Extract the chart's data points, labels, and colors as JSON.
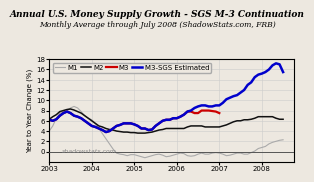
{
  "title": "Annual U.S. Money Supply Growth - SGS M-3 Continuation",
  "subtitle": "Monthly Average through July 2008 (ShadowStats.com, FRB)",
  "ylabel": "Year to Year Change (%)",
  "watermark": "shadowstats.com",
  "ylim": [
    -2,
    18
  ],
  "yticks": [
    0,
    2,
    4,
    6,
    8,
    10,
    12,
    14,
    16,
    18
  ],
  "xlim": [
    2003.0,
    2008.75
  ],
  "xticks": [
    2003,
    2004,
    2005,
    2006,
    2007,
    2008
  ],
  "background_color": "#ede8e0",
  "plot_bg": "#ede8e0",
  "title_fontsize": 6.5,
  "subtitle_fontsize": 5.5,
  "axis_fontsize": 5.0,
  "tick_fontsize": 5.0,
  "legend_fontsize": 5.0,
  "colors": {
    "M1": "#aaaaaa",
    "M2": "#111111",
    "M3": "#cc0000",
    "M3_SGS": "#0000cc"
  },
  "linewidths": {
    "M1": 0.8,
    "M2": 1.1,
    "M3": 1.6,
    "M3_SGS": 1.8
  },
  "x_M1": [
    2003.0,
    2003.083,
    2003.167,
    2003.25,
    2003.333,
    2003.417,
    2003.5,
    2003.583,
    2003.667,
    2003.75,
    2003.833,
    2003.917,
    2004.0,
    2004.083,
    2004.167,
    2004.25,
    2004.333,
    2004.417,
    2004.5,
    2004.583,
    2004.667,
    2004.75,
    2004.833,
    2004.917,
    2005.0,
    2005.083,
    2005.167,
    2005.25,
    2005.333,
    2005.417,
    2005.5,
    2005.583,
    2005.667,
    2005.75,
    2005.833,
    2005.917,
    2006.0,
    2006.083,
    2006.167,
    2006.25,
    2006.333,
    2006.417,
    2006.5,
    2006.583,
    2006.667,
    2006.75,
    2006.833,
    2006.917,
    2007.0,
    2007.083,
    2007.167,
    2007.25,
    2007.333,
    2007.417,
    2007.5,
    2007.583,
    2007.667,
    2007.75,
    2007.833,
    2007.917,
    2008.0,
    2008.083,
    2008.167,
    2008.25,
    2008.333,
    2008.417,
    2008.5
  ],
  "y_M1": [
    4.0,
    5.0,
    6.5,
    7.5,
    7.8,
    8.0,
    8.5,
    8.8,
    8.5,
    7.8,
    7.0,
    6.5,
    6.2,
    5.5,
    4.5,
    3.5,
    2.5,
    1.5,
    0.5,
    -0.3,
    -0.5,
    -0.6,
    -0.8,
    -0.6,
    -0.6,
    -0.8,
    -1.0,
    -1.2,
    -1.0,
    -0.8,
    -0.6,
    -0.5,
    -0.7,
    -1.0,
    -0.9,
    -0.7,
    -0.5,
    -0.3,
    -0.4,
    -0.8,
    -0.9,
    -0.8,
    -0.5,
    -0.3,
    -0.5,
    -0.5,
    -0.3,
    -0.2,
    -0.3,
    -0.5,
    -0.8,
    -0.7,
    -0.5,
    -0.3,
    -0.3,
    -0.5,
    -0.5,
    -0.2,
    0.1,
    0.6,
    0.8,
    1.0,
    1.5,
    1.8,
    2.0,
    2.2,
    2.3
  ],
  "x_M2": [
    2003.0,
    2003.083,
    2003.167,
    2003.25,
    2003.333,
    2003.417,
    2003.5,
    2003.583,
    2003.667,
    2003.75,
    2003.833,
    2003.917,
    2004.0,
    2004.083,
    2004.167,
    2004.25,
    2004.333,
    2004.417,
    2004.5,
    2004.583,
    2004.667,
    2004.75,
    2004.833,
    2004.917,
    2005.0,
    2005.083,
    2005.167,
    2005.25,
    2005.333,
    2005.417,
    2005.5,
    2005.583,
    2005.667,
    2005.75,
    2005.833,
    2005.917,
    2006.0,
    2006.083,
    2006.167,
    2006.25,
    2006.333,
    2006.417,
    2006.5,
    2006.583,
    2006.667,
    2006.75,
    2006.833,
    2006.917,
    2007.0,
    2007.083,
    2007.167,
    2007.25,
    2007.333,
    2007.417,
    2007.5,
    2007.583,
    2007.667,
    2007.75,
    2007.833,
    2007.917,
    2008.0,
    2008.083,
    2008.167,
    2008.25,
    2008.333,
    2008.417,
    2008.5
  ],
  "y_M2": [
    6.3,
    6.8,
    7.2,
    7.8,
    8.0,
    8.2,
    8.3,
    8.1,
    7.8,
    7.5,
    7.0,
    6.5,
    6.0,
    5.5,
    5.0,
    4.8,
    4.5,
    4.3,
    4.2,
    4.0,
    3.9,
    3.8,
    3.8,
    3.7,
    3.7,
    3.6,
    3.6,
    3.6,
    3.7,
    3.8,
    4.0,
    4.2,
    4.3,
    4.5,
    4.5,
    4.5,
    4.5,
    4.5,
    4.5,
    4.8,
    5.0,
    5.0,
    5.0,
    5.0,
    4.8,
    4.8,
    4.8,
    4.8,
    4.8,
    5.0,
    5.2,
    5.5,
    5.8,
    6.0,
    6.0,
    6.2,
    6.2,
    6.3,
    6.5,
    6.8,
    6.8,
    6.8,
    6.8,
    6.8,
    6.5,
    6.3,
    6.3
  ],
  "x_M3": [
    2003.0,
    2003.083,
    2003.167,
    2003.25,
    2003.333,
    2003.417,
    2003.5,
    2003.583,
    2003.667,
    2003.75,
    2003.833,
    2003.917,
    2004.0,
    2004.083,
    2004.167,
    2004.25,
    2004.333,
    2004.417,
    2004.5,
    2004.583,
    2004.667,
    2004.75,
    2004.833,
    2004.917,
    2005.0,
    2005.083,
    2005.167,
    2005.25,
    2005.333,
    2005.417,
    2005.5,
    2005.583,
    2005.667,
    2005.75,
    2005.833,
    2005.917,
    2006.0,
    2006.083,
    2006.167,
    2006.25,
    2006.333,
    2006.417,
    2006.5,
    2006.583,
    2006.667,
    2006.75,
    2006.917,
    2007.0
  ],
  "y_M3": [
    6.2,
    6.0,
    6.3,
    7.0,
    7.5,
    7.8,
    7.5,
    7.0,
    6.8,
    6.5,
    6.0,
    5.5,
    5.0,
    4.8,
    4.5,
    4.2,
    3.8,
    4.0,
    4.5,
    5.0,
    5.2,
    5.5,
    5.5,
    5.5,
    5.3,
    5.0,
    4.5,
    4.5,
    4.2,
    4.3,
    5.0,
    5.5,
    6.0,
    6.2,
    6.2,
    6.5,
    6.5,
    6.8,
    7.2,
    7.8,
    7.8,
    7.5,
    7.5,
    8.0,
    8.0,
    8.0,
    7.8,
    7.5
  ],
  "x_M3_SGS": [
    2003.0,
    2003.083,
    2003.167,
    2003.25,
    2003.333,
    2003.417,
    2003.5,
    2003.583,
    2003.667,
    2003.75,
    2003.833,
    2003.917,
    2004.0,
    2004.083,
    2004.167,
    2004.25,
    2004.333,
    2004.417,
    2004.5,
    2004.583,
    2004.667,
    2004.75,
    2004.833,
    2004.917,
    2005.0,
    2005.083,
    2005.167,
    2005.25,
    2005.333,
    2005.417,
    2005.5,
    2005.583,
    2005.667,
    2005.75,
    2005.833,
    2005.917,
    2006.0,
    2006.083,
    2006.167,
    2006.25,
    2006.333,
    2006.417,
    2006.5,
    2006.583,
    2006.667,
    2006.75,
    2006.833,
    2006.917,
    2007.0,
    2007.083,
    2007.167,
    2007.25,
    2007.333,
    2007.417,
    2007.5,
    2007.583,
    2007.667,
    2007.75,
    2007.833,
    2007.917,
    2008.0,
    2008.083,
    2008.167,
    2008.25,
    2008.333,
    2008.417,
    2008.5
  ],
  "y_M3_SGS": [
    6.2,
    6.0,
    6.3,
    7.0,
    7.5,
    7.8,
    7.5,
    7.0,
    6.8,
    6.5,
    6.0,
    5.5,
    5.0,
    4.8,
    4.5,
    4.2,
    3.8,
    4.0,
    4.5,
    5.0,
    5.2,
    5.5,
    5.5,
    5.5,
    5.3,
    5.0,
    4.5,
    4.5,
    4.2,
    4.3,
    5.0,
    5.5,
    6.0,
    6.2,
    6.2,
    6.5,
    6.5,
    6.8,
    7.2,
    7.8,
    8.0,
    8.5,
    8.8,
    9.0,
    9.0,
    8.8,
    8.8,
    9.0,
    9.0,
    9.5,
    10.2,
    10.5,
    10.8,
    11.0,
    11.5,
    12.0,
    13.0,
    13.5,
    14.5,
    15.0,
    15.2,
    15.5,
    16.0,
    16.8,
    17.2,
    17.0,
    15.5
  ]
}
